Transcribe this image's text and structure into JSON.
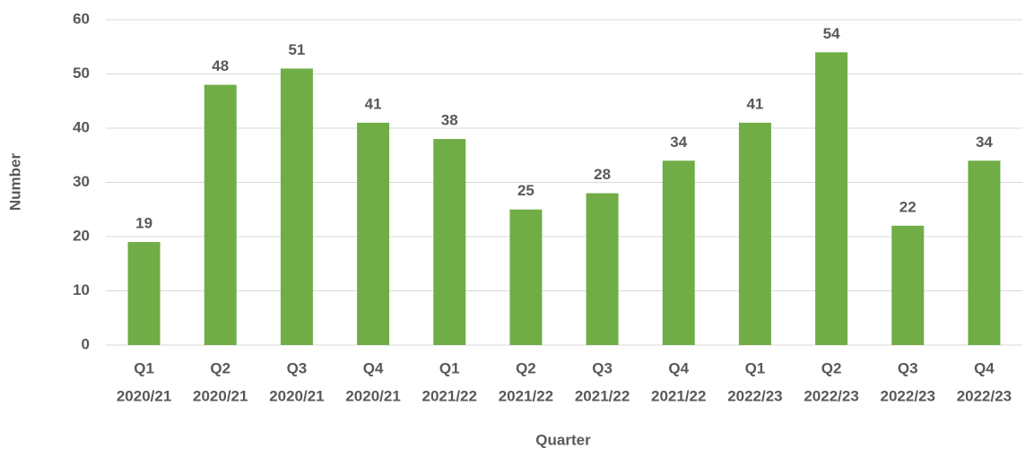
{
  "chart_data": {
    "type": "bar",
    "x_label": "Quarter",
    "y_label": "Number",
    "categories": [
      [
        "Q1",
        "2020/21"
      ],
      [
        "Q2",
        "2020/21"
      ],
      [
        "Q3",
        "2020/21"
      ],
      [
        "Q4",
        "2020/21"
      ],
      [
        "Q1",
        "2021/22"
      ],
      [
        "Q2",
        "2021/22"
      ],
      [
        "Q3",
        "2021/22"
      ],
      [
        "Q4",
        "2021/22"
      ],
      [
        "Q1",
        "2022/23"
      ],
      [
        "Q2",
        "2022/23"
      ],
      [
        "Q3",
        "2022/23"
      ],
      [
        "Q4",
        "2022/23"
      ]
    ],
    "values": [
      19,
      48,
      51,
      41,
      38,
      25,
      28,
      34,
      41,
      54,
      22,
      34
    ],
    "color": "#70ad47",
    "ylim": [
      0,
      60
    ],
    "yticks": [
      0,
      10,
      20,
      30,
      40,
      50,
      60
    ],
    "grid": true
  }
}
